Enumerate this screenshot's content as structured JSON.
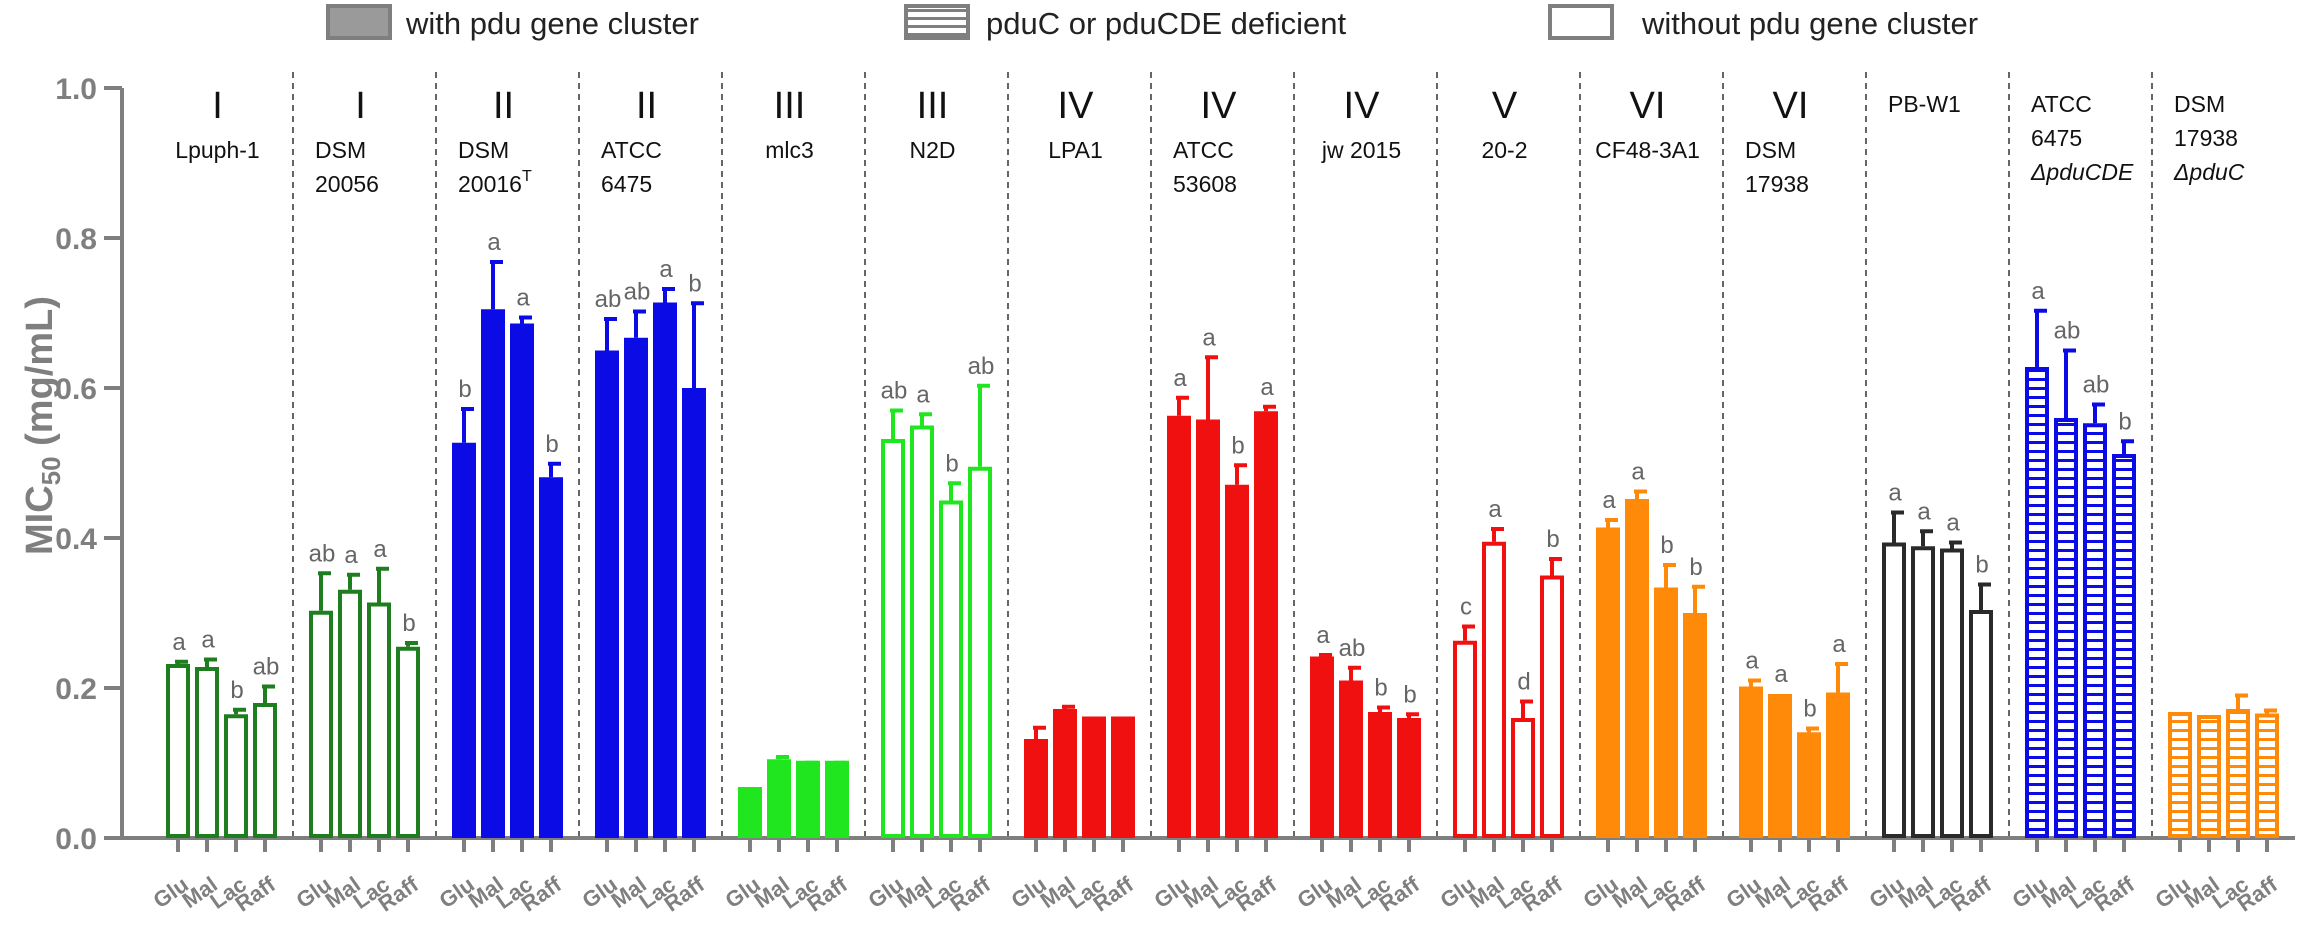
{
  "legend": [
    {
      "label": "with pdu gene cluster",
      "style": "filled"
    },
    {
      "label": "pduC or pduCDE deficient",
      "style": "hatched"
    },
    {
      "label": "without pdu gene cluster",
      "style": "open"
    }
  ],
  "chart_data": {
    "type": "bar",
    "ylabel_main": "MIC",
    "ylabel_sub": "50",
    "ylabel_unit": " (mg/mL)",
    "ylim": [
      0,
      1.0
    ],
    "yticks": [
      "0.0",
      "0.2",
      "0.4",
      "0.6",
      "0.8",
      "1.0"
    ],
    "categories": [
      "Glu",
      "Mal",
      "Lac",
      "Raff"
    ],
    "groups": [
      {
        "group": "I",
        "strain": [
          "Lpuph-1"
        ],
        "color": "#1e7d1e",
        "style": "open",
        "values": [
          0.232,
          0.228,
          0.165,
          0.18
        ],
        "errors": [
          0.003,
          0.01,
          0.006,
          0.022
        ],
        "sig": [
          "a",
          "a",
          "b",
          "ab"
        ]
      },
      {
        "group": "I",
        "strain": [
          "DSM",
          "20056"
        ],
        "color": "#1e7d1e",
        "style": "open",
        "values": [
          0.303,
          0.331,
          0.314,
          0.255
        ],
        "errors": [
          0.05,
          0.02,
          0.045,
          0.005
        ],
        "sig": [
          "ab",
          "a",
          "a",
          "b"
        ]
      },
      {
        "group": "II",
        "strain": [
          "DSM",
          "20016"
        ],
        "strain_sup": "T",
        "color": "#0b0be6",
        "style": "filled",
        "values": [
          0.527,
          0.705,
          0.686,
          0.481
        ],
        "errors": [
          0.045,
          0.063,
          0.008,
          0.018
        ],
        "sig": [
          "b",
          "a",
          "a",
          "b"
        ]
      },
      {
        "group": "II",
        "strain": [
          "ATCC",
          "6475"
        ],
        "color": "#0b0be6",
        "style": "filled",
        "values": [
          0.65,
          0.667,
          0.714,
          0.6
        ],
        "errors": [
          0.042,
          0.035,
          0.018,
          0.113
        ],
        "sig": [
          "ab",
          "ab",
          "a",
          "b"
        ]
      },
      {
        "group": "III",
        "strain": [
          "mlc3"
        ],
        "color": "#20e620",
        "style": "filled",
        "values": [
          0.068,
          0.105,
          0.103,
          0.103
        ],
        "errors": [
          0.0,
          0.003,
          0.0,
          0.0
        ],
        "sig": [
          "",
          "",
          "",
          ""
        ]
      },
      {
        "group": "III",
        "strain": [
          "N2D"
        ],
        "color": "#20e620",
        "style": "open",
        "values": [
          0.532,
          0.55,
          0.45,
          0.495
        ],
        "errors": [
          0.038,
          0.015,
          0.023,
          0.108
        ],
        "sig": [
          "ab",
          "a",
          "b",
          "ab"
        ]
      },
      {
        "group": "IV",
        "strain": [
          "LPA1"
        ],
        "color": "#f01010",
        "style": "filled",
        "values": [
          0.132,
          0.172,
          0.162,
          0.162
        ],
        "errors": [
          0.015,
          0.003,
          0.0,
          0.0
        ],
        "sig": [
          "",
          "",
          "",
          ""
        ]
      },
      {
        "group": "IV",
        "strain": [
          "ATCC",
          "53608"
        ],
        "color": "#f01010",
        "style": "filled",
        "values": [
          0.563,
          0.558,
          0.471,
          0.569
        ],
        "errors": [
          0.024,
          0.083,
          0.026,
          0.006
        ],
        "sig": [
          "a",
          "a",
          "b",
          "a"
        ]
      },
      {
        "group": "IV",
        "strain": [
          "jw 2015"
        ],
        "color": "#f01010",
        "style": "filled",
        "values": [
          0.242,
          0.21,
          0.168,
          0.16
        ],
        "errors": [
          0.002,
          0.017,
          0.006,
          0.005
        ],
        "sig": [
          "a",
          "ab",
          "b",
          "b"
        ]
      },
      {
        "group": "V",
        "strain": [
          "20-2"
        ],
        "color": "#f01010",
        "style": "open",
        "values": [
          0.263,
          0.395,
          0.16,
          0.35
        ],
        "errors": [
          0.019,
          0.017,
          0.022,
          0.022
        ],
        "sig": [
          "c",
          "a",
          "d",
          "b"
        ]
      },
      {
        "group": "VI",
        "strain": [
          "CF48-3A1"
        ],
        "color": "#ff8a0a",
        "style": "filled",
        "values": [
          0.414,
          0.452,
          0.334,
          0.3
        ],
        "errors": [
          0.01,
          0.01,
          0.03,
          0.035
        ],
        "sig": [
          "a",
          "a",
          "b",
          "b"
        ]
      },
      {
        "group": "VI",
        "strain": [
          "DSM",
          "17938"
        ],
        "color": "#ff8a0a",
        "style": "filled",
        "values": [
          0.202,
          0.192,
          0.141,
          0.194
        ],
        "errors": [
          0.008,
          0.0,
          0.005,
          0.038
        ],
        "sig": [
          "a",
          "a",
          "b",
          "a"
        ]
      },
      {
        "group": "",
        "strain": [
          "PB-W1"
        ],
        "color": "#2a2a2a",
        "style": "open",
        "values": [
          0.394,
          0.389,
          0.386,
          0.304
        ],
        "errors": [
          0.04,
          0.02,
          0.008,
          0.034
        ],
        "sig": [
          "a",
          "a",
          "a",
          "b"
        ]
      },
      {
        "group": "",
        "strain": [
          "ATCC",
          "6475",
          "ΔpduCDE"
        ],
        "color": "#0b0be6",
        "style": "hatched",
        "values": [
          0.628,
          0.56,
          0.553,
          0.512
        ],
        "errors": [
          0.075,
          0.09,
          0.025,
          0.017
        ],
        "sig": [
          "a",
          "ab",
          "ab",
          "b"
        ]
      },
      {
        "group": "",
        "strain": [
          "DSM",
          "17938",
          "ΔpduC"
        ],
        "color": "#ff8a0a",
        "style": "hatched",
        "values": [
          0.168,
          0.164,
          0.172,
          0.166
        ],
        "errors": [
          0.0,
          0.0,
          0.018,
          0.004
        ],
        "sig": [
          "",
          "",
          "",
          ""
        ]
      }
    ]
  }
}
